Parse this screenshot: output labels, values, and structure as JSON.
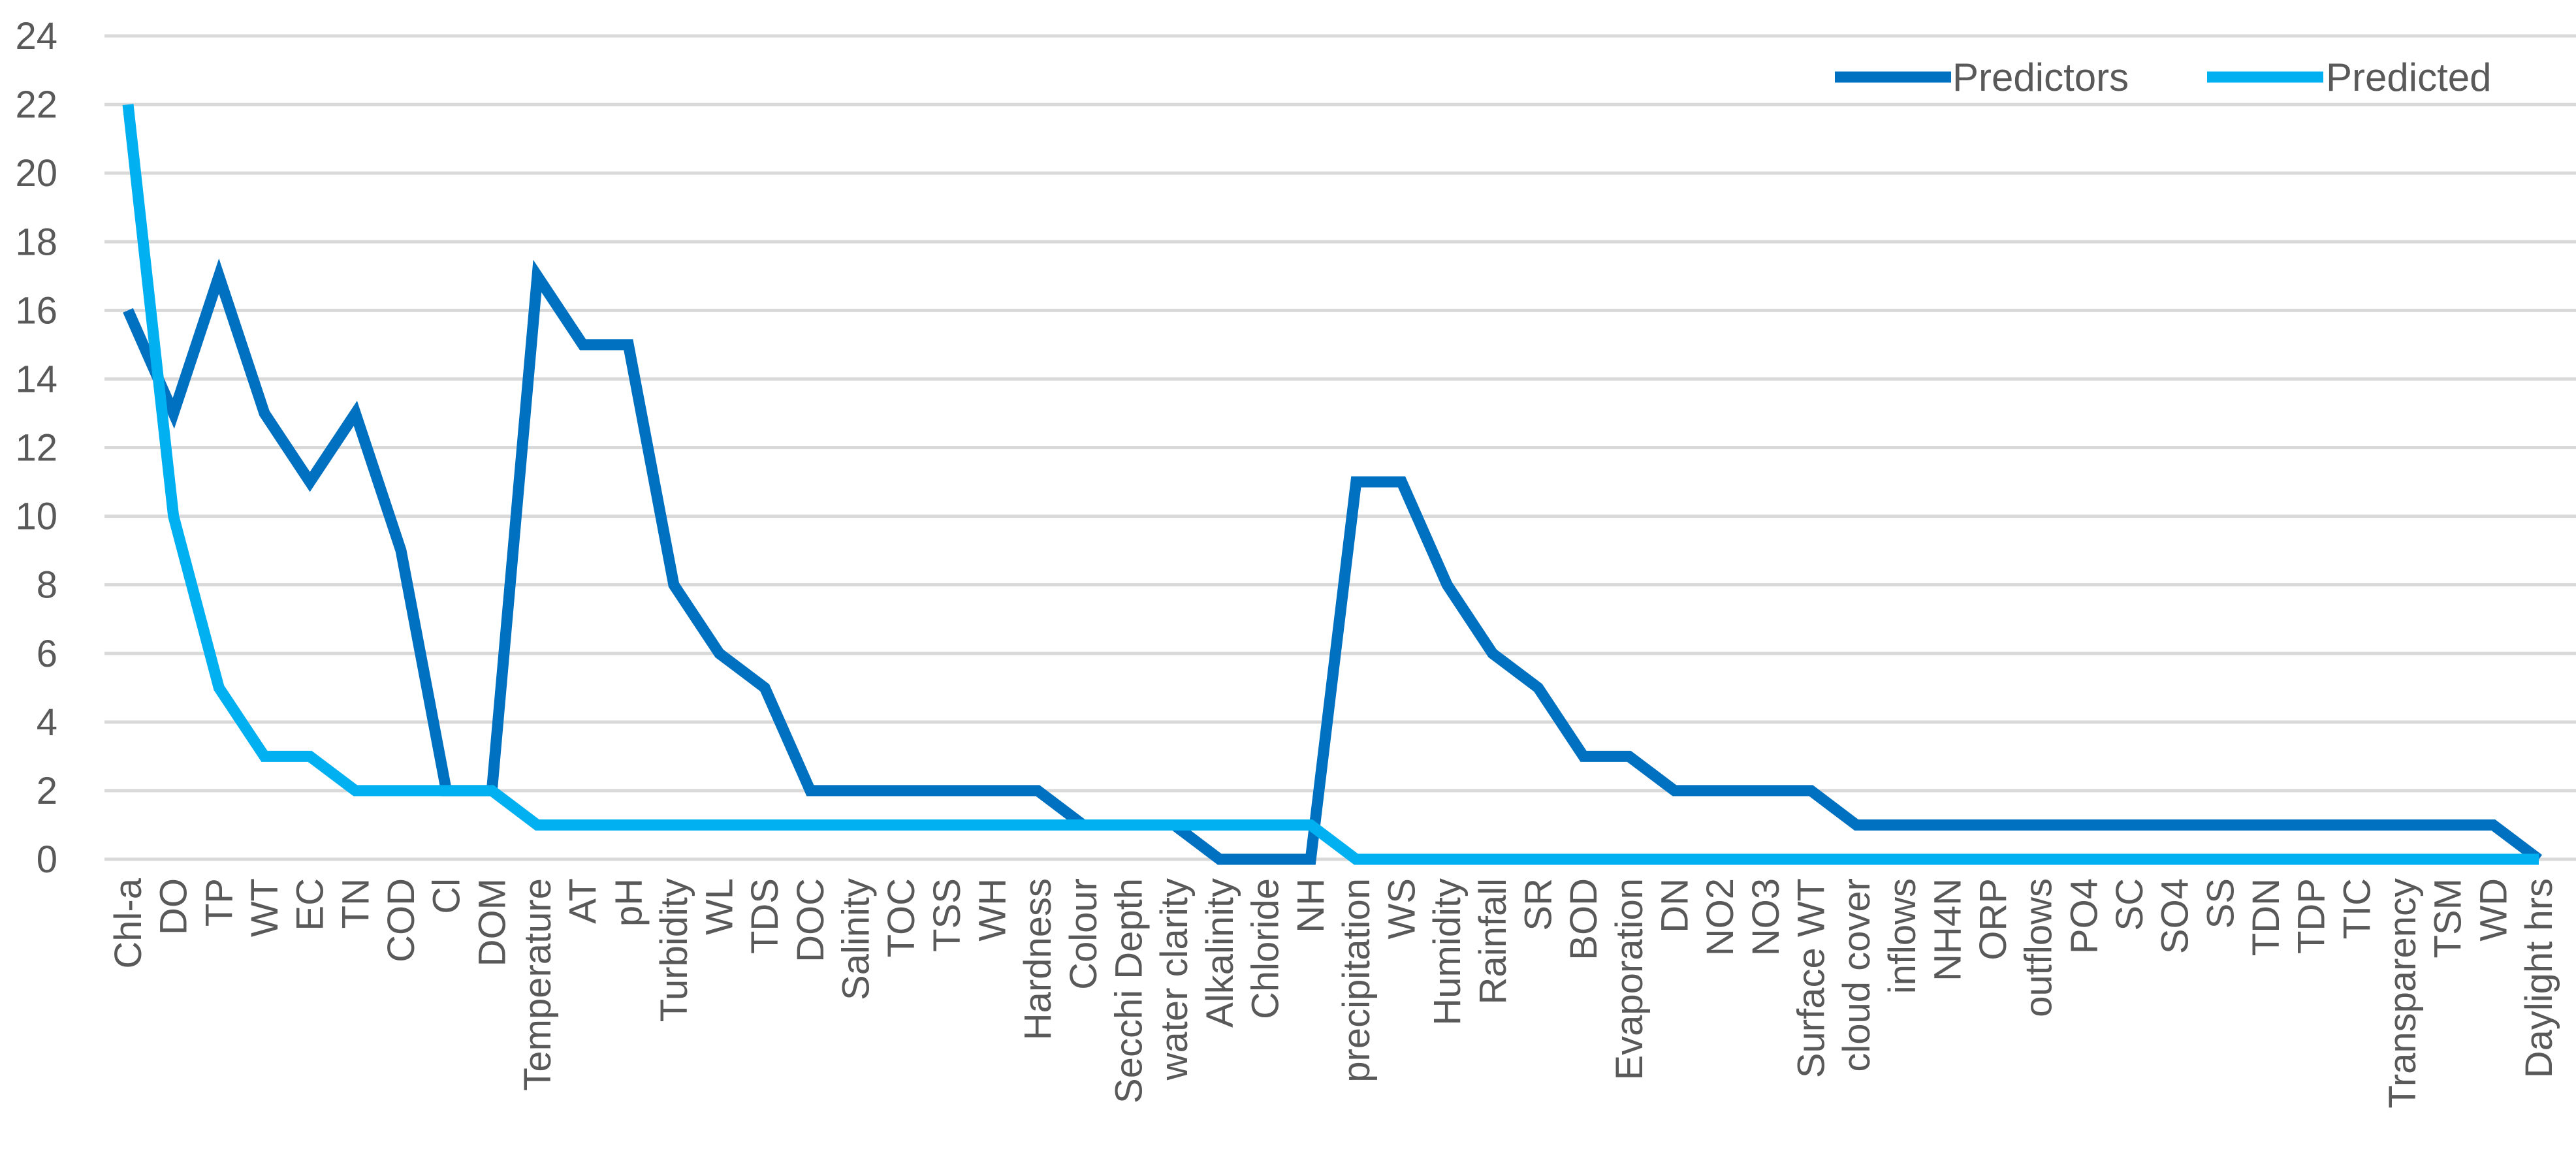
{
  "chart_data": {
    "type": "line",
    "categories": [
      "Chl-a",
      "DO",
      "TP",
      "WT",
      "EC",
      "TN",
      "COD",
      "Cl",
      "DOM",
      "Temperature",
      "AT",
      "pH",
      "Turbidity",
      "WL",
      "TDS",
      "DOC",
      "Salinity",
      "TOC",
      "TSS",
      "WH",
      "Hardness",
      "Colour",
      "Secchi Depth",
      "water clarity",
      "Alkalinity",
      "Chloride",
      "NH",
      "precipitation",
      "WS",
      "Humidity",
      "Rainfall",
      "SR",
      "BOD",
      "Evaporation",
      "DN",
      "NO2",
      "NO3",
      "Surface WT",
      "cloud cover",
      "inflows",
      "NH4N",
      "ORP",
      "outflows",
      "PO4",
      "SC",
      "SO4",
      "SS",
      "TDN",
      "TDP",
      "TIC",
      "Transparency",
      "TSM",
      "WD",
      "Daylight hrs"
    ],
    "series": [
      {
        "name": "Predictors",
        "color": "#0070C0",
        "values": [
          16,
          13,
          17,
          13,
          11,
          13,
          9,
          2,
          2,
          17,
          15,
          15,
          8,
          6,
          5,
          2,
          2,
          2,
          2,
          2,
          2,
          1,
          1,
          1,
          0,
          0,
          0,
          11,
          11,
          8,
          6,
          5,
          3,
          3,
          2,
          2,
          2,
          2,
          1,
          1,
          1,
          1,
          1,
          1,
          1,
          1,
          1,
          1,
          1,
          1,
          1,
          1,
          1,
          0
        ]
      },
      {
        "name": "Predicted",
        "color": "#00B0F0",
        "values": [
          22,
          10,
          5,
          3,
          3,
          2,
          2,
          2,
          2,
          1,
          1,
          1,
          1,
          1,
          1,
          1,
          1,
          1,
          1,
          1,
          1,
          1,
          1,
          1,
          1,
          1,
          1,
          0,
          0,
          0,
          0,
          0,
          0,
          0,
          0,
          0,
          0,
          0,
          0,
          0,
          0,
          0,
          0,
          0,
          0,
          0,
          0,
          0,
          0,
          0,
          0,
          0,
          0,
          0
        ]
      }
    ],
    "ylim": [
      0,
      24
    ],
    "yticks": [
      "0",
      "2",
      "4",
      "6",
      "8",
      "10",
      "12",
      "14",
      "16",
      "18",
      "20",
      "22",
      "24"
    ],
    "grid": true,
    "legend_position": "top-right"
  }
}
